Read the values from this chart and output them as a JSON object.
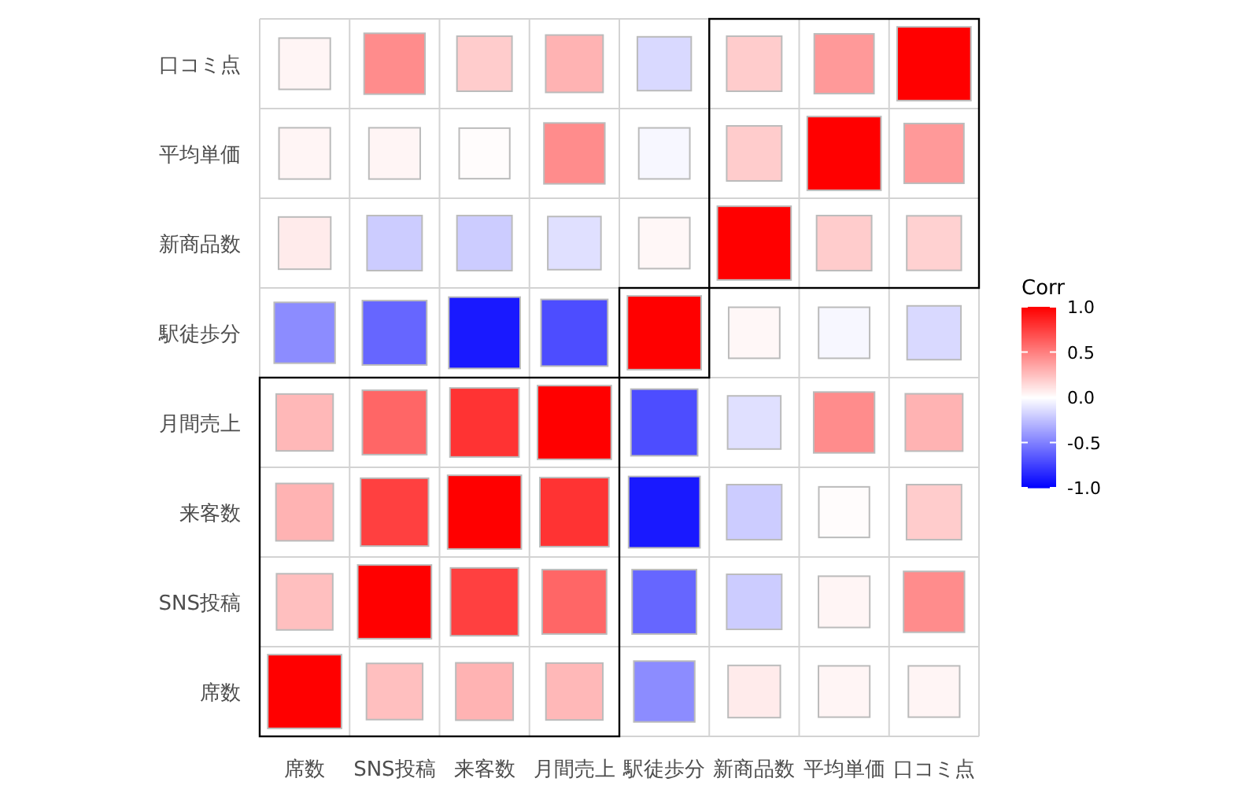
{
  "chart_data": {
    "type": "heatmap",
    "clabel": "Corr",
    "clim": [
      -1,
      1
    ],
    "cticks": [
      {
        "value": -1,
        "label": "-1.0"
      },
      -0.5,
      {
        "value": 0,
        "label": "0.0"
      },
      0.5,
      {
        "value": 1,
        "label": "1.0"
      }
    ],
    "grid": true,
    "categories": [
      "席数",
      "SNS投稿",
      "来客数",
      "月間売上",
      "駅徒歩分",
      "新商品数",
      "平均単価",
      "口コミ点"
    ],
    "y_categories": [
      "口コミ点",
      "平均単価",
      "新商品数",
      "駅徒歩分",
      "月間売上",
      "来客数",
      "SNS投稿",
      "席数"
    ],
    "cells": [
      [
        0.04,
        0.45,
        0.2,
        0.3,
        -0.15,
        0.2,
        0.4,
        1
      ],
      [
        0.04,
        0.04,
        0.01,
        0.45,
        -0.03,
        0.2,
        1,
        0.4
      ],
      [
        0.08,
        -0.2,
        -0.2,
        -0.12,
        0.03,
        1,
        0.2,
        0.18
      ],
      [
        -0.45,
        -0.6,
        -0.9,
        -0.7,
        1,
        0.03,
        -0.03,
        -0.15
      ],
      [
        0.28,
        0.6,
        0.8,
        1,
        -0.7,
        -0.12,
        0.45,
        0.3
      ],
      [
        0.3,
        0.75,
        1,
        0.8,
        -0.9,
        -0.2,
        0.01,
        0.2
      ],
      [
        0.25,
        1,
        0.75,
        0.6,
        -0.6,
        -0.2,
        0.04,
        0.45
      ],
      [
        1,
        0.25,
        0.3,
        0.28,
        -0.45,
        0.08,
        0.04,
        0.04
      ]
    ]
  }
}
